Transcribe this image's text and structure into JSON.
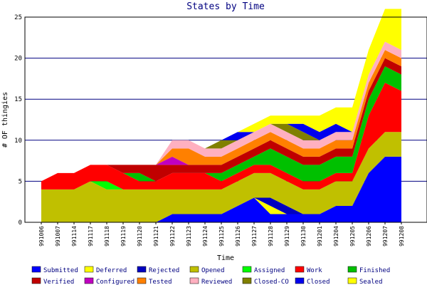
{
  "chart_data": {
    "type": "area",
    "stacked": true,
    "title": "States by Time",
    "xlabel": "Time",
    "ylabel": "# OF thingies",
    "ylim": [
      0,
      25
    ],
    "yticks": [
      0,
      5,
      10,
      15,
      20,
      25
    ],
    "grid": true,
    "legend_position": "bottom",
    "categories": [
      "991006",
      "991007",
      "991114",
      "991117",
      "991118",
      "991119",
      "991120",
      "991121",
      "991122",
      "991123",
      "991124",
      "991125",
      "991126",
      "991127",
      "991128",
      "991129",
      "991130",
      "991201",
      "991204",
      "991205",
      "991206",
      "991207",
      "991208"
    ],
    "series": [
      {
        "name": "Submitted",
        "color": "#0000ff",
        "values": [
          0,
          0,
          0,
          0,
          0,
          0,
          0,
          0,
          1,
          1,
          1,
          1,
          2,
          3,
          1,
          1,
          1,
          1,
          2,
          2,
          6,
          8,
          8
        ]
      },
      {
        "name": "Deferred",
        "color": "#ffff00",
        "values": [
          0,
          0,
          0,
          0,
          0,
          0,
          0,
          0,
          0,
          0,
          0,
          0,
          0,
          0,
          1,
          0,
          0,
          0,
          0,
          0,
          0,
          0,
          0
        ]
      },
      {
        "name": "Rejected",
        "color": "#0000c0",
        "values": [
          0,
          0,
          0,
          0,
          0,
          0,
          0,
          0,
          0,
          0,
          0,
          0,
          0,
          0,
          1,
          1,
          0,
          0,
          0,
          0,
          0,
          0,
          0
        ]
      },
      {
        "name": "Opened",
        "color": "#c0c000",
        "values": [
          4,
          4,
          4,
          5,
          4,
          4,
          4,
          4,
          3,
          3,
          3,
          3,
          3,
          3,
          3,
          3,
          3,
          3,
          3,
          3,
          3,
          3,
          3
        ]
      },
      {
        "name": "Assigned",
        "color": "#00ff00",
        "values": [
          0,
          0,
          0,
          0,
          1,
          0,
          0,
          0,
          0,
          0,
          0,
          0,
          0,
          0,
          0,
          0,
          0,
          0,
          0,
          0,
          0,
          0,
          0
        ]
      },
      {
        "name": "Work",
        "color": "#ff0000",
        "values": [
          1,
          2,
          2,
          2,
          2,
          2,
          1,
          1,
          2,
          2,
          2,
          1,
          1,
          1,
          1,
          1,
          1,
          1,
          1,
          1,
          4,
          6,
          5
        ]
      },
      {
        "name": "Finished",
        "color": "#00c000",
        "values": [
          0,
          0,
          0,
          0,
          0,
          0,
          1,
          0,
          0,
          0,
          0,
          1,
          1,
          1,
          2,
          2,
          2,
          2,
          2,
          2,
          2,
          2,
          2
        ]
      },
      {
        "name": "Verified",
        "color": "#c00000",
        "values": [
          0,
          0,
          0,
          0,
          0,
          1,
          1,
          2,
          1,
          1,
          1,
          1,
          1,
          1,
          1,
          1,
          1,
          1,
          1,
          1,
          1,
          1,
          1
        ]
      },
      {
        "name": "Configured",
        "color": "#c000c0",
        "values": [
          0,
          0,
          0,
          0,
          0,
          0,
          0,
          0,
          1,
          0,
          0,
          0,
          0,
          0,
          0,
          0,
          0,
          0,
          0,
          0,
          0,
          0,
          0
        ]
      },
      {
        "name": "Tested",
        "color": "#ff8000",
        "values": [
          0,
          0,
          0,
          0,
          0,
          0,
          0,
          0,
          1,
          2,
          1,
          1,
          1,
          1,
          1,
          1,
          1,
          1,
          1,
          1,
          1,
          1,
          1
        ]
      },
      {
        "name": "Reviewed",
        "color": "#ffb0c0",
        "values": [
          0,
          0,
          0,
          0,
          0,
          0,
          0,
          0,
          1,
          1,
          1,
          1,
          1,
          1,
          1,
          1,
          1,
          1,
          1,
          1,
          1,
          1,
          1
        ]
      },
      {
        "name": "Closed-CO",
        "color": "#808000",
        "values": [
          0,
          0,
          0,
          0,
          0,
          0,
          0,
          0,
          0,
          0,
          0,
          1,
          0,
          0,
          0,
          1,
          1,
          0,
          0,
          0,
          0,
          0,
          0
        ]
      },
      {
        "name": "Closed",
        "color": "#0000ee",
        "values": [
          0,
          0,
          0,
          0,
          0,
          0,
          0,
          0,
          0,
          0,
          0,
          0,
          1,
          0,
          0,
          0,
          1,
          1,
          1,
          0,
          0,
          0,
          0
        ]
      },
      {
        "name": "Sealed",
        "color": "#ffff00",
        "values": [
          0,
          0,
          0,
          0,
          0,
          0,
          0,
          0,
          0,
          0,
          0,
          0,
          0,
          1,
          1,
          1,
          1,
          2,
          2,
          3,
          3,
          4,
          5
        ]
      }
    ]
  }
}
